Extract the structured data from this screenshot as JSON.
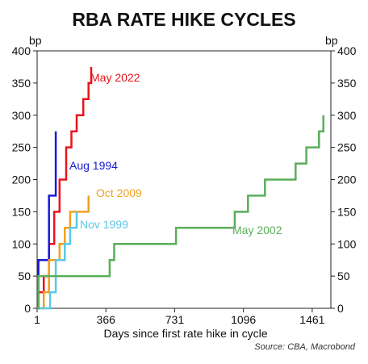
{
  "chart_data": {
    "type": "line",
    "title": "RBA RATE HIKE CYCLES",
    "xlabel": "Days since first rate hike in cycle",
    "ylabel_left": "bp",
    "ylabel_right": "bp",
    "source": "Source: CBA, Macrobond",
    "xlim": [
      1,
      1560
    ],
    "ylim": [
      0,
      400
    ],
    "x_ticks": [
      1,
      366,
      731,
      1096,
      1461
    ],
    "y_ticks": [
      0,
      50,
      100,
      150,
      200,
      250,
      300,
      350,
      400
    ],
    "grid": false,
    "series": [
      {
        "name": "May 2022",
        "color": "#e8141b",
        "points": [
          [
            1,
            0
          ],
          [
            8,
            25
          ],
          [
            36,
            50
          ],
          [
            64,
            100
          ],
          [
            92,
            150
          ],
          [
            120,
            200
          ],
          [
            155,
            250
          ],
          [
            183,
            275
          ],
          [
            211,
            300
          ],
          [
            246,
            325
          ],
          [
            274,
            350
          ],
          [
            288,
            375
          ]
        ]
      },
      {
        "name": "Aug 1994",
        "color": "#1a1ad6",
        "points": [
          [
            1,
            0
          ],
          [
            8,
            75
          ],
          [
            64,
            175
          ],
          [
            100,
            275
          ]
        ]
      },
      {
        "name": "Oct 2009",
        "color": "#f0a020",
        "points": [
          [
            1,
            0
          ],
          [
            36,
            25
          ],
          [
            64,
            75
          ],
          [
            120,
            100
          ],
          [
            148,
            125
          ],
          [
            176,
            150
          ],
          [
            274,
            175
          ]
        ]
      },
      {
        "name": "Nov 1999",
        "color": "#5bc8e6",
        "points": [
          [
            1,
            0
          ],
          [
            70,
            25
          ],
          [
            100,
            75
          ],
          [
            148,
            100
          ],
          [
            176,
            125
          ],
          [
            211,
            150
          ]
        ]
      },
      {
        "name": "May 2002",
        "color": "#5aae5a",
        "points": [
          [
            1,
            0
          ],
          [
            8,
            50
          ],
          [
            386,
            75
          ],
          [
            410,
            100
          ],
          [
            738,
            125
          ],
          [
            1050,
            150
          ],
          [
            1120,
            175
          ],
          [
            1210,
            200
          ],
          [
            1373,
            225
          ],
          [
            1430,
            250
          ],
          [
            1497,
            275
          ],
          [
            1520,
            300
          ]
        ]
      }
    ]
  }
}
